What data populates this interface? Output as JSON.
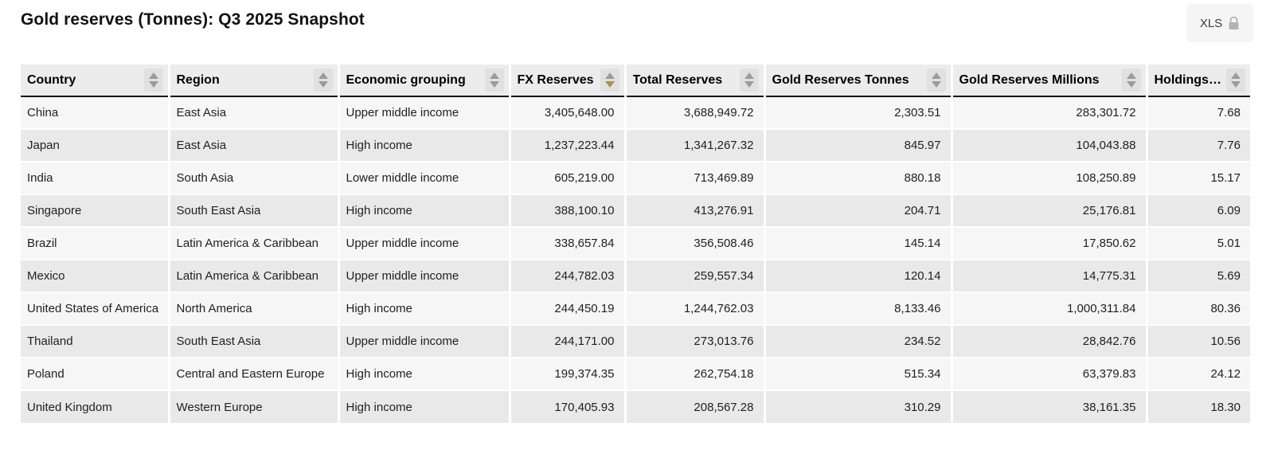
{
  "page": {
    "title": "Gold reserves (Tonnes): Q3 2025 Snapshot",
    "export_button_label": "XLS",
    "export_button_icon": "lock-icon"
  },
  "colors": {
    "header_bg": "#ececec",
    "row_odd_bg": "#f6f6f6",
    "row_even_bg": "#e9e9e9",
    "header_border": "#161616",
    "sort_arrow_inactive": "#9b9b9b",
    "sort_arrow_active": "#a6914e",
    "button_bg": "#f5f5f5"
  },
  "table": {
    "columns": [
      {
        "label": "Country",
        "align": "left",
        "sort": "none"
      },
      {
        "label": "Region",
        "align": "left",
        "sort": "none"
      },
      {
        "label": "Economic grouping",
        "align": "left",
        "sort": "none"
      },
      {
        "label": "FX Reserves",
        "align": "right",
        "sort": "desc"
      },
      {
        "label": "Total Reserves",
        "align": "right",
        "sort": "none"
      },
      {
        "label": "Gold Reserves Tonnes",
        "align": "right",
        "sort": "none"
      },
      {
        "label": "Gold Reserves Millions",
        "align": "right",
        "sort": "none"
      },
      {
        "label": "Holdings %",
        "align": "right",
        "sort": "none"
      }
    ],
    "rows": [
      [
        "China",
        "East Asia",
        "Upper middle income",
        "3,405,648.00",
        "3,688,949.72",
        "2,303.51",
        "283,301.72",
        "7.68"
      ],
      [
        "Japan",
        "East Asia",
        "High income",
        "1,237,223.44",
        "1,341,267.32",
        "845.97",
        "104,043.88",
        "7.76"
      ],
      [
        "India",
        "South Asia",
        "Lower middle income",
        "605,219.00",
        "713,469.89",
        "880.18",
        "108,250.89",
        "15.17"
      ],
      [
        "Singapore",
        "South East Asia",
        "High income",
        "388,100.10",
        "413,276.91",
        "204.71",
        "25,176.81",
        "6.09"
      ],
      [
        "Brazil",
        "Latin America & Caribbean",
        "Upper middle income",
        "338,657.84",
        "356,508.46",
        "145.14",
        "17,850.62",
        "5.01"
      ],
      [
        "Mexico",
        "Latin America & Caribbean",
        "Upper middle income",
        "244,782.03",
        "259,557.34",
        "120.14",
        "14,775.31",
        "5.69"
      ],
      [
        "United States of America",
        "North America",
        "High income",
        "244,450.19",
        "1,244,762.03",
        "8,133.46",
        "1,000,311.84",
        "80.36"
      ],
      [
        "Thailand",
        "South East Asia",
        "Upper middle income",
        "244,171.00",
        "273,013.76",
        "234.52",
        "28,842.76",
        "10.56"
      ],
      [
        "Poland",
        "Central and Eastern Europe",
        "High income",
        "199,374.35",
        "262,754.18",
        "515.34",
        "63,379.83",
        "24.12"
      ],
      [
        "United Kingdom",
        "Western Europe",
        "High income",
        "170,405.93",
        "208,567.28",
        "310.29",
        "38,161.35",
        "18.30"
      ]
    ]
  }
}
